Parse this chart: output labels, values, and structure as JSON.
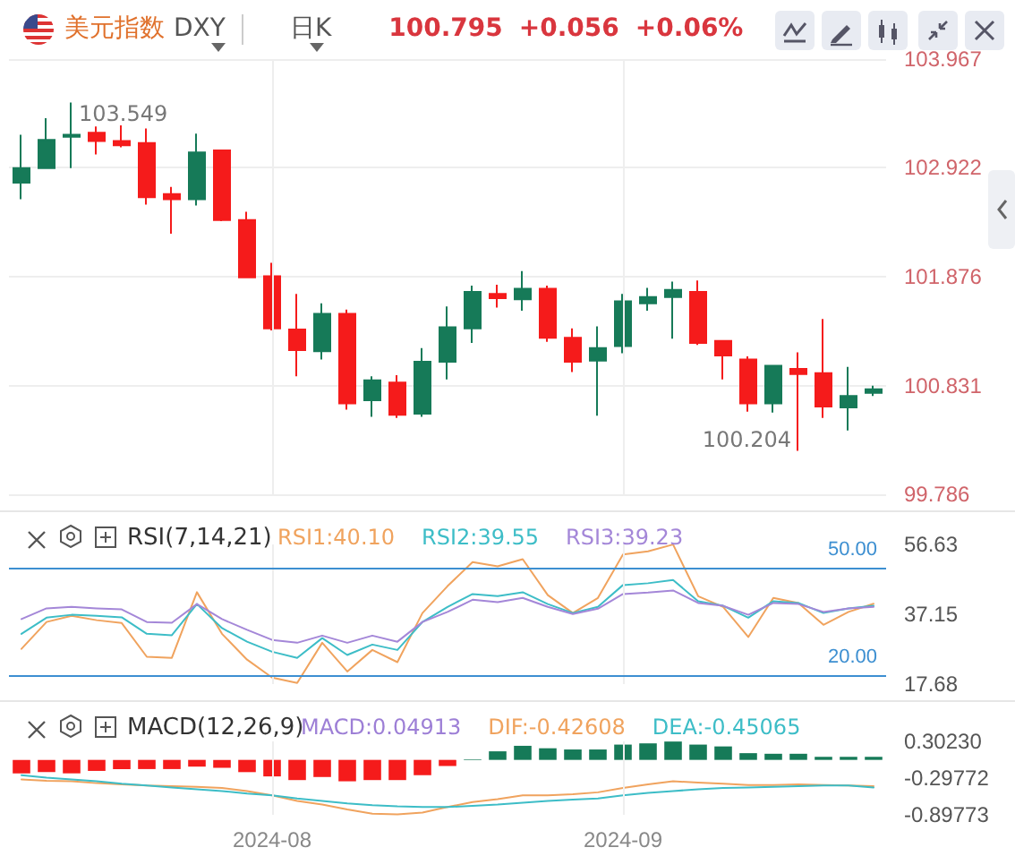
{
  "chart_data": [
    {
      "type": "candlestick",
      "title": "美元指数",
      "subtitle": "DXY",
      "annotations": [
        "日K",
        "100.795",
        "+0.056",
        "+0.06%",
        "103.549",
        "100.204"
      ],
      "categories": [
        null,
        null,
        null,
        null,
        null,
        null,
        null,
        null,
        null,
        null,
        "2024-08",
        null,
        null,
        null,
        null,
        null,
        null,
        null,
        null,
        null,
        null,
        null,
        null,
        null,
        "2024-09",
        null,
        null,
        null,
        null,
        null,
        null,
        null,
        null,
        null,
        null
      ],
      "ohlc": [
        [
          102.78,
          103.24,
          102.62,
          102.92
        ],
        [
          102.92,
          103.4,
          102.91,
          103.19
        ],
        [
          103.22,
          103.549,
          102.92,
          103.24
        ],
        [
          103.26,
          103.32,
          103.05,
          103.18
        ],
        [
          103.18,
          103.33,
          103.12,
          103.14
        ],
        [
          103.16,
          103.3,
          102.57,
          102.64
        ],
        [
          102.67,
          102.74,
          102.29,
          102.62
        ],
        [
          102.62,
          103.25,
          102.56,
          103.07
        ],
        [
          103.09,
          103.09,
          102.41,
          102.42
        ],
        [
          102.42,
          102.5,
          101.87,
          101.87
        ],
        [
          101.88,
          102.01,
          101.36,
          101.38
        ],
        [
          101.37,
          101.71,
          100.92,
          101.17
        ],
        [
          101.16,
          101.62,
          101.08,
          101.52
        ],
        [
          101.52,
          101.56,
          100.6,
          100.66
        ],
        [
          100.69,
          100.92,
          100.53,
          100.88
        ],
        [
          100.86,
          100.93,
          100.52,
          100.55
        ],
        [
          100.56,
          101.19,
          100.53,
          101.06
        ],
        [
          101.06,
          101.59,
          100.89,
          101.39
        ],
        [
          101.38,
          101.79,
          101.24,
          101.73
        ],
        [
          101.71,
          101.8,
          101.58,
          101.67
        ],
        [
          101.66,
          101.93,
          101.55,
          101.76
        ],
        [
          101.76,
          101.79,
          101.25,
          101.29
        ],
        [
          101.29,
          101.38,
          100.96,
          101.06
        ],
        [
          101.07,
          101.4,
          100.54,
          101.19
        ],
        [
          101.21,
          101.71,
          101.14,
          101.64
        ],
        [
          101.62,
          101.77,
          101.55,
          101.68
        ],
        [
          101.68,
          101.83,
          101.28,
          101.75
        ],
        [
          101.73,
          101.84,
          101.22,
          101.24
        ],
        [
          101.26,
          101.26,
          100.89,
          101.12
        ],
        [
          101.08,
          101.11,
          100.58,
          100.66
        ],
        [
          100.66,
          101.03,
          100.57,
          101.02
        ],
        [
          100.99,
          101.15,
          100.204,
          100.94
        ],
        [
          100.95,
          101.47,
          100.52,
          100.63
        ],
        [
          100.62,
          101.01,
          100.4,
          100.73
        ],
        [
          100.76,
          100.83,
          100.73,
          100.795
        ]
      ],
      "colors": [
        "#167a58",
        "#167a58",
        "#167a58",
        "#f51b1b",
        "#f51b1b",
        "#f51b1b",
        "#f51b1b",
        "#167a58",
        "#f51b1b",
        "#f51b1b",
        "#f51b1b",
        "#f51b1b",
        "#167a58",
        "#f51b1b",
        "#167a58",
        "#f51b1b",
        "#167a58",
        "#167a58",
        "#167a58",
        "#f51b1b",
        "#167a58",
        "#f51b1b",
        "#f51b1b",
        "#167a58",
        "#167a58",
        "#167a58",
        "#167a58",
        "#f51b1b",
        "#f51b1b",
        "#f51b1b",
        "#167a58",
        "#f51b1b",
        "#f51b1b",
        "#167a58",
        "#167a58"
      ],
      "ylim": [
        99.786,
        103.967
      ],
      "yticks": [
        99.786,
        100.831,
        101.876,
        102.922,
        103.967
      ],
      "grid": true,
      "tick_labels": "y"
    },
    {
      "type": "line",
      "title": "RSI(7,14,21)",
      "categories": [
        null,
        null,
        null,
        null,
        null,
        null,
        null,
        null,
        null,
        null,
        "2024-08",
        null,
        null,
        null,
        null,
        null,
        null,
        null,
        null,
        null,
        null,
        null,
        null,
        null,
        "2024-09",
        null,
        null,
        null,
        null,
        null,
        null,
        null,
        null,
        null,
        null
      ],
      "series": [
        {
          "name": "RSI1:40.10",
          "color": "#f0a35e",
          "values": [
            27.5,
            35.0,
            36.7,
            35.5,
            34.7,
            25.3,
            25.0,
            43.3,
            31.7,
            24.5,
            19.5,
            18.0,
            29.2,
            21.2,
            27.2,
            23.8,
            37.5,
            45.0,
            51.7,
            50.5,
            52.5,
            42.5,
            37.5,
            41.7,
            53.8,
            54.7,
            56.6,
            42.2,
            39.2,
            30.8,
            41.7,
            40.3,
            34.2,
            37.8,
            40.1
          ]
        },
        {
          "name": "RSI2:39.55",
          "color": "#3dbdc7",
          "values": [
            31.7,
            36.2,
            37.0,
            36.7,
            36.3,
            31.7,
            31.3,
            40.0,
            33.3,
            29.5,
            26.7,
            25.0,
            30.5,
            25.8,
            28.7,
            27.2,
            35.0,
            39.2,
            42.8,
            42.2,
            43.3,
            40.0,
            37.5,
            39.2,
            45.3,
            45.8,
            46.7,
            40.8,
            39.5,
            36.2,
            40.8,
            40.3,
            37.5,
            38.8,
            39.5
          ]
        },
        {
          "name": "RSI3:39.23",
          "color": "#a487d8",
          "values": [
            35.8,
            38.8,
            39.2,
            38.8,
            38.5,
            35.0,
            34.8,
            40.0,
            35.8,
            32.8,
            30.0,
            29.2,
            31.2,
            29.2,
            31.2,
            29.5,
            35.0,
            37.8,
            41.2,
            40.5,
            41.7,
            39.2,
            37.2,
            38.7,
            42.8,
            43.2,
            43.8,
            40.3,
            39.5,
            37.0,
            40.3,
            40.0,
            37.8,
            38.8,
            39.2
          ]
        }
      ],
      "ylim": [
        17.68,
        56.63
      ],
      "yticks": [
        17.68,
        37.15,
        56.63
      ],
      "ref_lines": [
        {
          "axis": "y",
          "value": 50,
          "label": "50.00",
          "color": "#3d8fd1"
        },
        {
          "axis": "y",
          "value": 20,
          "label": "20.00",
          "color": "#3d8fd1"
        }
      ],
      "grid": "x",
      "legend": "top",
      "tick_labels": "y"
    },
    {
      "type": "bar",
      "title": "MACD(12,26,9)",
      "categories": [
        null,
        null,
        null,
        null,
        null,
        null,
        null,
        null,
        null,
        null,
        "2024-08",
        null,
        null,
        null,
        null,
        null,
        null,
        null,
        null,
        null,
        null,
        null,
        null,
        null,
        "2024-09",
        null,
        null,
        null,
        null,
        null,
        null,
        null,
        null,
        null,
        null
      ],
      "series": [
        {
          "name": "MACD:0.04913",
          "type": "bar",
          "colors": [
            "#f51b1b",
            "#f51b1b",
            "#f51b1b",
            "#f51b1b",
            "#f51b1b",
            "#f51b1b",
            "#f51b1b",
            "#f51b1b",
            "#f51b1b",
            "#f51b1b",
            "#f51b1b",
            "#f51b1b",
            "#f51b1b",
            "#f51b1b",
            "#f51b1b",
            "#f51b1b",
            "#f51b1b",
            "#f51b1b",
            "#167a58",
            "#167a58",
            "#167a58",
            "#167a58",
            "#167a58",
            "#167a58",
            "#167a58",
            "#167a58",
            "#167a58",
            "#167a58",
            "#167a58",
            "#167a58",
            "#167a58",
            "#167a58",
            "#167a58",
            "#167a58",
            "#167a58"
          ],
          "values": [
            -0.22,
            -0.2,
            -0.22,
            -0.18,
            -0.15,
            -0.15,
            -0.15,
            -0.11,
            -0.13,
            -0.2,
            -0.27,
            -0.33,
            -0.28,
            -0.35,
            -0.33,
            -0.33,
            -0.25,
            -0.1,
            0.01,
            0.14,
            0.23,
            0.19,
            0.17,
            0.17,
            0.25,
            0.27,
            0.3,
            0.25,
            0.22,
            0.11,
            0.1,
            0.1,
            0.05,
            0.05,
            0.05
          ]
        },
        {
          "name": "DIF:-0.42608",
          "type": "line",
          "color": "#f0a35e",
          "values": [
            -0.32,
            -0.34,
            -0.35,
            -0.38,
            -0.4,
            -0.42,
            -0.43,
            -0.44,
            -0.46,
            -0.51,
            -0.58,
            -0.67,
            -0.73,
            -0.81,
            -0.88,
            -0.89,
            -0.86,
            -0.77,
            -0.69,
            -0.64,
            -0.58,
            -0.58,
            -0.56,
            -0.53,
            -0.46,
            -0.4,
            -0.35,
            -0.37,
            -0.39,
            -0.41,
            -0.41,
            -0.4,
            -0.41,
            -0.42,
            -0.43
          ]
        },
        {
          "name": "DEA:-0.45065",
          "type": "line",
          "color": "#3dbdc7",
          "values": [
            -0.25,
            -0.29,
            -0.32,
            -0.35,
            -0.39,
            -0.42,
            -0.45,
            -0.48,
            -0.51,
            -0.55,
            -0.58,
            -0.63,
            -0.67,
            -0.71,
            -0.74,
            -0.76,
            -0.77,
            -0.77,
            -0.75,
            -0.73,
            -0.7,
            -0.67,
            -0.65,
            -0.63,
            -0.58,
            -0.54,
            -0.51,
            -0.48,
            -0.46,
            -0.45,
            -0.44,
            -0.43,
            -0.42,
            -0.42,
            -0.45
          ]
        }
      ],
      "ylim": [
        -0.89773,
        0.3023
      ],
      "yticks": [
        {
          "value": -0.89773,
          "label": "-0.89773"
        },
        {
          "value": -0.29772,
          "label": "-0.29772"
        },
        {
          "value": 0.3023,
          "label": "0.30230"
        }
      ],
      "grid": "x",
      "legend": "top"
    }
  ]
}
